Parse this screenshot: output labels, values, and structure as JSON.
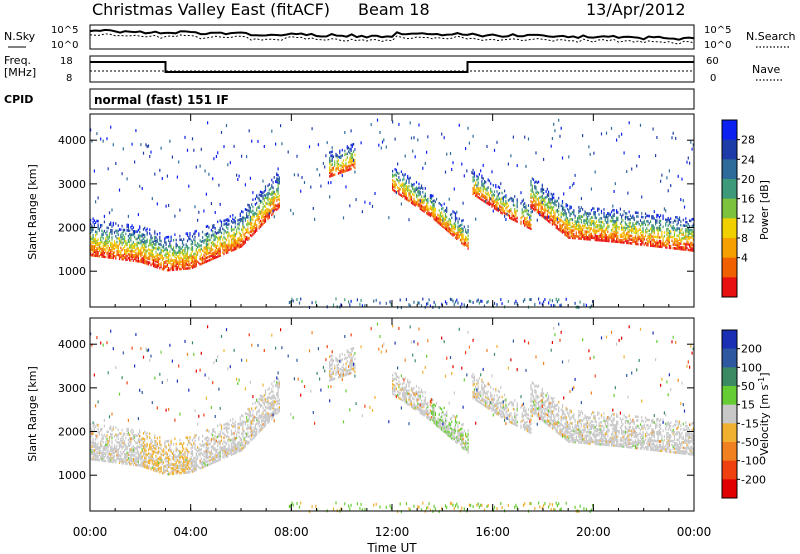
{
  "title": {
    "radar": "Christmas Valley East (fitACF)",
    "beam": "Beam 18",
    "date": "13/Apr/2012"
  },
  "panels": {
    "noise": {
      "left_label": "N.Sky",
      "left_ticks": [
        "10^5",
        "10^0"
      ],
      "right_ticks": [
        "10^5",
        "10^0"
      ],
      "right_label": "N.Search"
    },
    "freq": {
      "left_label_1": "Freq.",
      "left_label_2": "[MHz]",
      "left_ticks": [
        "18",
        "8"
      ],
      "right_ticks": [
        "60",
        "0"
      ],
      "right_label": "Nave"
    },
    "cpid": {
      "label": "CPID",
      "text": "normal (fast) 151 IF"
    }
  },
  "chart_data": [
    {
      "type": "heatmap",
      "title": "",
      "quantity": "Power",
      "xlabel": "Time UT",
      "ylabel": "Slant Range [km]",
      "x_ticks": [
        "00:00",
        "04:00",
        "08:00",
        "12:00",
        "16:00",
        "20:00",
        "00:00"
      ],
      "x_range_hours": [
        0,
        24
      ],
      "y_ticks": [
        1000,
        2000,
        3000,
        4000
      ],
      "y_range": [
        180,
        4600
      ],
      "colorbar": {
        "label": "Power [dB]",
        "ticks": [
          "4",
          "8",
          "12",
          "16",
          "20",
          "24",
          "28"
        ],
        "colors": [
          "#0a1ff0",
          "#1e3ca8",
          "#2e6b9a",
          "#3c9a7a",
          "#7dc23c",
          "#f0d000",
          "#f5a000",
          "#f06000",
          "#e81010"
        ]
      },
      "features": [
        {
          "x": [
            0,
            2,
            3,
            4,
            6,
            7.5
          ],
          "y": [
            1500,
            1350,
            1150,
            1200,
            1700,
            2600
          ]
        },
        {
          "x": [
            9.5,
            10.5
          ],
          "y": [
            3300,
            3500
          ]
        },
        {
          "x": [
            12,
            13.5,
            15
          ],
          "y": [
            3000,
            2400,
            1650
          ]
        },
        {
          "x": [
            15.2,
            16.5,
            17.5
          ],
          "y": [
            2900,
            2400,
            2100
          ]
        },
        {
          "x": [
            17.5,
            19,
            21,
            24
          ],
          "y": [
            2600,
            1900,
            1800,
            1600
          ]
        }
      ]
    },
    {
      "type": "heatmap",
      "title": "",
      "quantity": "Velocity",
      "xlabel": "Time UT",
      "ylabel": "Slant Range [km]",
      "x_ticks": [
        "00:00",
        "04:00",
        "08:00",
        "12:00",
        "16:00",
        "20:00",
        "00:00"
      ],
      "x_range_hours": [
        0,
        24
      ],
      "y_ticks": [
        1000,
        2000,
        3000,
        4000
      ],
      "y_range": [
        180,
        4600
      ],
      "colorbar": {
        "label": "Velocity [m s",
        "label_sup": "-1",
        "label_end": "]",
        "ticks": [
          "200",
          "100",
          "50",
          "15",
          "-15",
          "-50",
          "-100",
          "-200"
        ],
        "colors": [
          "#1a2fb4",
          "#2e58a0",
          "#3c8a64",
          "#66cc33",
          "#c8c8c8",
          "#f0b030",
          "#f08020",
          "#f04010",
          "#e00000"
        ]
      }
    }
  ]
}
